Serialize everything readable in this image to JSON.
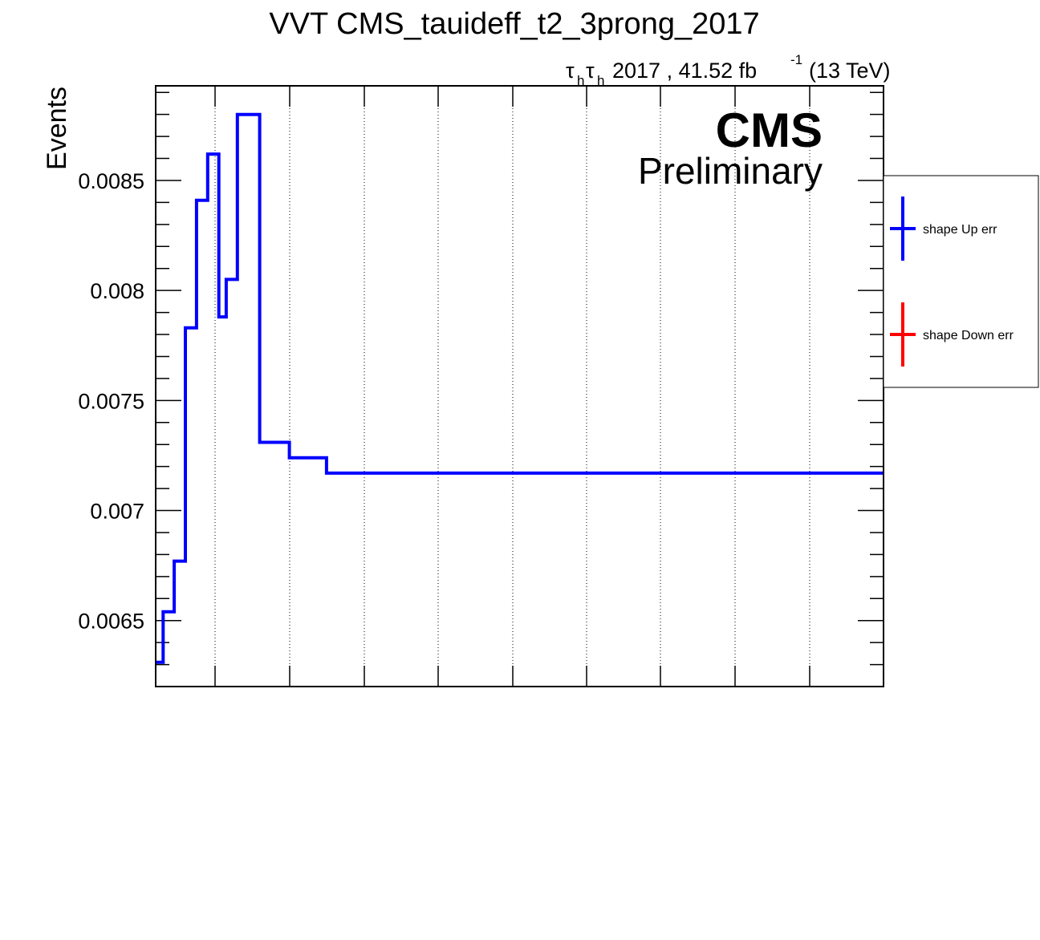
{
  "chart_data": {
    "type": "line",
    "style": "step-histogram",
    "title": "VVT CMS_tauideff_t2_3prong_2017",
    "ylabel": "Events",
    "xlabel": "",
    "lumi": {
      "prefix_symbol": "τ",
      "sub": "h",
      "text": "2017 , 41.52 fb",
      "sup": "-1",
      "energy": "(13 TeV)"
    },
    "cms_label": "CMS",
    "cms_sublabel": "Preliminary",
    "ylim": [
      0.0062,
      0.00893
    ],
    "yticks": [
      {
        "value": 0.0065,
        "label": "0.0065"
      },
      {
        "value": 0.007,
        "label": "0.007"
      },
      {
        "value": 0.0075,
        "label": "0.0075"
      },
      {
        "value": 0.008,
        "label": "0.008"
      },
      {
        "value": 0.0085,
        "label": "0.0085"
      }
    ],
    "grid": {
      "x": true,
      "y": false
    },
    "legend_position": "right-outside",
    "series": [
      {
        "name": "shape Up err",
        "color": "#0000ff",
        "bins": [
          {
            "x0": 0.0,
            "x1": 1.0,
            "y": 0.00631
          },
          {
            "x0": 1.0,
            "x1": 2.5,
            "y": 0.00654
          },
          {
            "x0": 2.5,
            "x1": 4.0,
            "y": 0.00677
          },
          {
            "x0": 4.0,
            "x1": 5.5,
            "y": 0.00783
          },
          {
            "x0": 5.5,
            "x1": 7.0,
            "y": 0.00841
          },
          {
            "x0": 7.0,
            "x1": 8.5,
            "y": 0.00862
          },
          {
            "x0": 8.5,
            "x1": 9.5,
            "y": 0.00788
          },
          {
            "x0": 9.5,
            "x1": 11.0,
            "y": 0.00805
          },
          {
            "x0": 11.0,
            "x1": 14.0,
            "y": 0.0088
          },
          {
            "x0": 14.0,
            "x1": 18.0,
            "y": 0.00731
          },
          {
            "x0": 18.0,
            "x1": 23.0,
            "y": 0.00724
          },
          {
            "x0": 23.0,
            "x1": 98.0,
            "y": 0.00717
          }
        ]
      },
      {
        "name": "shape Down err",
        "color": "#ff0000",
        "bins": []
      }
    ]
  }
}
